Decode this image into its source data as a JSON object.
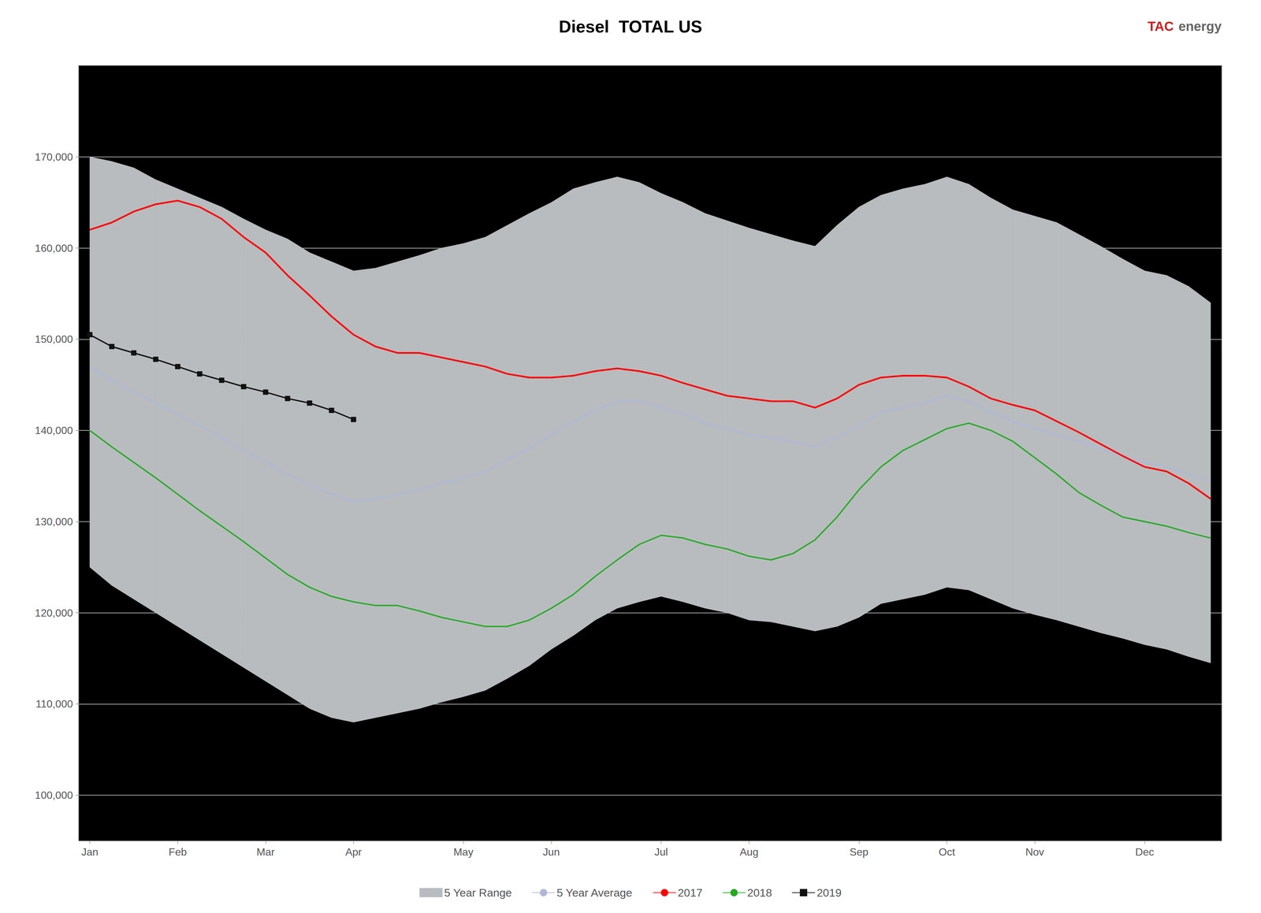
{
  "chart_data": {
    "type": "line",
    "title": "Diesel  TOTAL US",
    "annotations": [
      {
        "text": "TAC",
        "color": "#cc2222"
      },
      {
        "text": "energy",
        "color": "#666666"
      }
    ],
    "x": [
      1,
      2,
      3,
      4,
      5,
      6,
      7,
      8,
      9,
      10,
      11,
      12,
      13,
      14,
      15,
      16,
      17,
      18,
      19,
      20,
      21,
      22,
      23,
      24,
      25,
      26,
      27,
      28,
      29,
      30,
      31,
      32,
      33,
      34,
      35,
      36,
      37,
      38,
      39,
      40,
      41,
      42,
      43,
      44,
      45,
      46,
      47,
      48,
      49,
      50,
      51,
      52
    ],
    "xlim": [
      0.5,
      52.5
    ],
    "xticks": [
      {
        "value": 1,
        "label": "Jan"
      },
      {
        "value": 5,
        "label": "Feb"
      },
      {
        "value": 9,
        "label": "Mar"
      },
      {
        "value": 13,
        "label": "Apr"
      },
      {
        "value": 18,
        "label": "May"
      },
      {
        "value": 22,
        "label": "Jun"
      },
      {
        "value": 27,
        "label": "Jul"
      },
      {
        "value": 31,
        "label": "Aug"
      },
      {
        "value": 36,
        "label": "Sep"
      },
      {
        "value": 40,
        "label": "Oct"
      },
      {
        "value": 44,
        "label": "Nov"
      },
      {
        "value": 49,
        "label": "Dec"
      }
    ],
    "ylim": [
      95000,
      180000
    ],
    "yticks": [
      {
        "value": 100000,
        "label": "100,000"
      },
      {
        "value": 110000,
        "label": "110,000"
      },
      {
        "value": 120000,
        "label": "120,000"
      },
      {
        "value": 130000,
        "label": "130,000"
      },
      {
        "value": 140000,
        "label": "140,000"
      },
      {
        "value": 150000,
        "label": "150,000"
      },
      {
        "value": 160000,
        "label": "160,000"
      },
      {
        "value": 170000,
        "label": "170,000"
      }
    ],
    "grid": "y",
    "legend": "bottom",
    "series": [
      {
        "name": "5 Year Range",
        "type": "area",
        "color": "#b8bcbe",
        "low": [
          125000,
          123000,
          121500,
          120000,
          118500,
          117000,
          115500,
          114000,
          112500,
          111000,
          109500,
          108500,
          108000,
          108500,
          109000,
          109500,
          110200,
          110800,
          111500,
          112800,
          114200,
          116000,
          117500,
          119200,
          120500,
          121200,
          121800,
          121200,
          120500,
          120000,
          119200,
          119000,
          118500,
          118000,
          118500,
          119500,
          121000,
          121500,
          122000,
          122800,
          122500,
          121500,
          120500,
          119800,
          119200,
          118500,
          117800,
          117200,
          116500,
          116000,
          115200,
          114500
        ],
        "high": [
          170000,
          169500,
          168800,
          167500,
          166500,
          165500,
          164500,
          163200,
          162000,
          161000,
          159500,
          158500,
          157500,
          157800,
          158500,
          159200,
          160000,
          160500,
          161200,
          162500,
          163800,
          165000,
          166500,
          167200,
          167800,
          167200,
          166000,
          165000,
          163800,
          163000,
          162200,
          161500,
          160800,
          160200,
          162500,
          164500,
          165800,
          166500,
          167000,
          167800,
          167000,
          165500,
          164200,
          163500,
          162800,
          161500,
          160200,
          158800,
          157500,
          157000,
          155800,
          154000
        ]
      },
      {
        "name": "5 Year Average",
        "type": "line",
        "color": "#b0b8d8",
        "values": [
          147000,
          145500,
          144200,
          143000,
          141800,
          140500,
          139200,
          137800,
          136500,
          135200,
          134000,
          133000,
          132200,
          132500,
          133000,
          133500,
          134200,
          134800,
          135500,
          136800,
          138000,
          139500,
          141000,
          142200,
          143200,
          143200,
          142500,
          141800,
          140800,
          140200,
          139500,
          139200,
          138800,
          138200,
          139200,
          140500,
          142000,
          142500,
          143000,
          143800,
          143200,
          142000,
          141000,
          140200,
          139500,
          138800,
          138000,
          137200,
          136500,
          136000,
          135200,
          134500
        ]
      },
      {
        "name": "2017",
        "type": "line",
        "color": "#ff0000",
        "values": [
          162000,
          162800,
          164000,
          164800,
          165200,
          164500,
          163200,
          161200,
          159500,
          157000,
          154800,
          152500,
          150500,
          149200,
          148500,
          148500,
          148000,
          147500,
          147000,
          146200,
          145800,
          145800,
          146000,
          146500,
          146800,
          146500,
          146000,
          145200,
          144500,
          143800,
          143500,
          143200,
          143200,
          142500,
          143500,
          145000,
          145800,
          146000,
          146000,
          145800,
          144800,
          143500,
          142800,
          142200,
          141000,
          139800,
          138500,
          137200,
          136000,
          135500,
          134200,
          132500
        ]
      },
      {
        "name": "2018",
        "type": "line",
        "color": "#22aa22",
        "values": [
          140000,
          138200,
          136500,
          134800,
          133000,
          131200,
          129500,
          127800,
          126000,
          124200,
          122800,
          121800,
          121200,
          120800,
          120800,
          120200,
          119500,
          119000,
          118500,
          118500,
          119200,
          120500,
          122000,
          124000,
          125800,
          127500,
          128500,
          128200,
          127500,
          127000,
          126200,
          125800,
          126500,
          128000,
          130500,
          133500,
          136000,
          137800,
          139000,
          140200,
          140800,
          140000,
          138800,
          137000,
          135200,
          133200,
          131800,
          130500,
          130000,
          129500,
          128800,
          128200
        ]
      },
      {
        "name": "2019",
        "type": "line",
        "color": "#111111",
        "marker": "square",
        "values": [
          150500,
          149200,
          148500,
          147800,
          147000,
          146200,
          145500,
          144800,
          144200,
          143500,
          143000,
          142200,
          141200,
          null,
          null,
          null,
          null,
          null,
          null,
          null,
          null,
          null,
          null,
          null,
          null,
          null,
          null,
          null,
          null,
          null,
          null,
          null,
          null,
          null,
          null,
          null,
          null,
          null,
          null,
          null,
          null,
          null,
          null,
          null,
          null,
          null,
          null,
          null,
          null,
          null,
          null,
          null
        ]
      }
    ]
  }
}
